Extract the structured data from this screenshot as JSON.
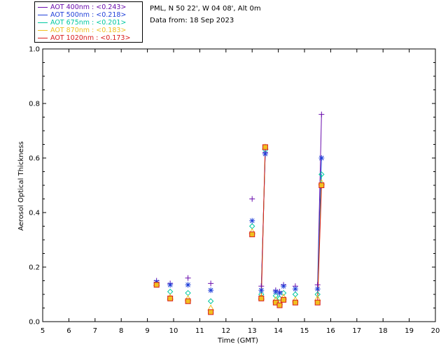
{
  "header": {
    "station": "PML, N 50 22', W 04 08', Alt 0m",
    "date_line": "Data from: 18 Sep 2023"
  },
  "chart_data": {
    "type": "scatter",
    "xlabel": "Time (GMT)",
    "ylabel": "Aerosol Optical Thickness",
    "xlim": [
      5,
      20
    ],
    "ylim": [
      0,
      1.0
    ],
    "xticks": [
      5,
      6,
      7,
      8,
      9,
      10,
      11,
      12,
      13,
      14,
      15,
      16,
      17,
      18,
      19,
      20
    ],
    "yticks": [
      0.0,
      0.2,
      0.4,
      0.6,
      0.8,
      1.0
    ],
    "ytick_labels": [
      "0.0",
      "0.2",
      "0.4",
      "0.6",
      "0.8",
      "1.0"
    ],
    "grid": false,
    "legend_position": "top-left, outside plot",
    "series": [
      {
        "name": "AOT  400nm : <0.243>",
        "color": "#6a0dad",
        "marker": "plus",
        "x": [
          9.35,
          9.87,
          10.55,
          11.42,
          13.0,
          13.35,
          13.5,
          13.9,
          14.05,
          14.2,
          14.65,
          15.5,
          15.65
        ],
        "y": [
          0.15,
          0.14,
          0.16,
          0.14,
          0.45,
          0.13,
          0.62,
          0.115,
          0.11,
          0.135,
          0.13,
          0.135,
          0.76
        ]
      },
      {
        "name": "AOT  500nm : <0.218>",
        "color": "#1f3fd9",
        "marker": "asterisk",
        "x": [
          9.35,
          9.87,
          10.55,
          11.42,
          13.0,
          13.35,
          13.5,
          13.9,
          14.05,
          14.2,
          14.65,
          15.5,
          15.65
        ],
        "y": [
          0.145,
          0.135,
          0.135,
          0.115,
          0.37,
          0.115,
          0.615,
          0.11,
          0.105,
          0.13,
          0.12,
          0.12,
          0.6
        ]
      },
      {
        "name": "AOT  675nm : <0.201>",
        "color": "#00c8a0",
        "marker": "diamond",
        "x": [
          9.35,
          9.87,
          10.55,
          11.42,
          13.0,
          13.35,
          13.5,
          13.9,
          14.05,
          14.2,
          14.65,
          15.5,
          15.65
        ],
        "y": [
          0.14,
          0.11,
          0.105,
          0.075,
          0.35,
          0.1,
          0.63,
          0.095,
          0.085,
          0.105,
          0.1,
          0.1,
          0.54
        ]
      },
      {
        "name": "AOT  870nm : <0.183>",
        "color": "#f0c020",
        "marker": "triangle",
        "x": [
          9.35,
          9.87,
          10.55,
          11.42,
          13.0,
          13.35,
          13.5,
          13.9,
          14.05,
          14.2,
          14.65,
          15.5,
          15.65
        ],
        "y": [
          0.14,
          0.09,
          0.085,
          0.05,
          0.33,
          0.09,
          0.64,
          0.08,
          0.07,
          0.09,
          0.08,
          0.085,
          0.51
        ]
      },
      {
        "name": "AOT 1020nm : <0.173>",
        "color": "#d81a1a",
        "marker": "square",
        "x": [
          9.35,
          9.87,
          10.55,
          11.42,
          13.0,
          13.35,
          13.5,
          13.9,
          14.05,
          14.2,
          14.65,
          15.5,
          15.65
        ],
        "y": [
          0.135,
          0.085,
          0.075,
          0.035,
          0.32,
          0.085,
          0.64,
          0.07,
          0.06,
          0.08,
          0.07,
          0.07,
          0.5
        ]
      }
    ],
    "connectors": [
      {
        "from_x": 13.35,
        "to_x": 13.5
      },
      {
        "from_x": 15.5,
        "to_x": 15.65
      }
    ]
  }
}
